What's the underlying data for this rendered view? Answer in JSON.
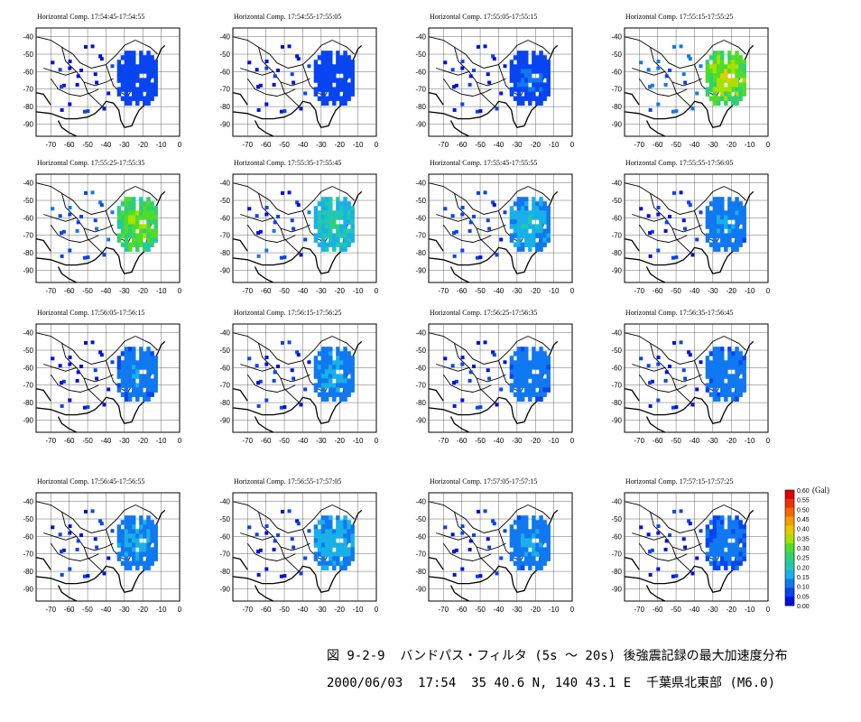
{
  "chart_data": {
    "type": "heatmap",
    "panel_title_prefix": "Horizontal Comp.",
    "panels": [
      {
        "title": "Horizontal Comp.  17:54:45-17:54:55",
        "level": 0.05
      },
      {
        "title": "Horizontal Comp.  17:54:55-17:55:05",
        "level": 0.05
      },
      {
        "title": "Horizontal Comp.  17:55:05-17:55:15",
        "level": 0.08
      },
      {
        "title": "Horizontal Comp.  17:55:15-17:55:25",
        "level": 0.38
      },
      {
        "title": "Horizontal Comp.  17:55:25-17:55:35",
        "level": 0.34
      },
      {
        "title": "Horizontal Comp.  17:55:35-17:55:45",
        "level": 0.22
      },
      {
        "title": "Horizontal Comp.  17:55:45-17:55:55",
        "level": 0.17
      },
      {
        "title": "Horizontal Comp.  17:55:55-17:56:05",
        "level": 0.13
      },
      {
        "title": "Horizontal Comp.  17:56:05-17:56:15",
        "level": 0.12
      },
      {
        "title": "Horizontal Comp.  17:56:15-17:56:25",
        "level": 0.14
      },
      {
        "title": "Horizontal Comp.  17:56:25-17:56:35",
        "level": 0.12
      },
      {
        "title": "Horizontal Comp.  17:56:35-17:56:45",
        "level": 0.11
      },
      {
        "title": "Horizontal Comp.  17:56:45-17:56:55",
        "level": 0.14
      },
      {
        "title": "Horizontal Comp.  17:56:55-17:57:05",
        "level": 0.16
      },
      {
        "title": "Horizontal Comp.  17:57:05-17:57:15",
        "level": 0.13
      },
      {
        "title": "Horizontal Comp.  17:57:15-17:57:25",
        "level": 0.1
      }
    ],
    "x_ticks": [
      "-70",
      "-60",
      "-50",
      "-40",
      "-30",
      "-20",
      "-10",
      "0"
    ],
    "y_ticks": [
      "-40",
      "-50",
      "-60",
      "-70",
      "-80",
      "-90"
    ],
    "xlim": [
      -78,
      0
    ],
    "ylim": [
      -97,
      -35
    ],
    "grid": true,
    "colorbar": {
      "unit": "(Gal)",
      "min": 0.0,
      "max": 0.6,
      "labels": [
        "0.60",
        "0.55",
        "0.50",
        "0.45",
        "0.40",
        "0.35",
        "0.30",
        "0.25",
        "0.20",
        "0.15",
        "0.10",
        "0.05",
        "0.00"
      ],
      "colors": [
        "#e00000",
        "#f03000",
        "#f46800",
        "#f89c00",
        "#e8c800",
        "#a8e000",
        "#50dc28",
        "#30d070",
        "#20c8b0",
        "#18b0e8",
        "#1078f0",
        "#0844f0",
        "#0010e0"
      ]
    },
    "placement": "colorbar right of bottom-right panel"
  },
  "caption": {
    "line1": "図 9-2-9  バンドパス・フィルタ (5s ～ 20s) 後強震記録の最大加速度分布",
    "line2": "2000/06/03  17:54  35 40.6 N, 140 43.1 E  千葉県北東部 (M6.0)"
  }
}
